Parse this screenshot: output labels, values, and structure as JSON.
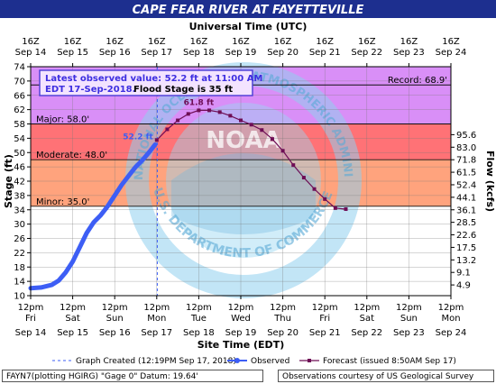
{
  "chart_data": {
    "type": "line",
    "title": "CAPE FEAR RIVER AT FAYETTEVILLE",
    "top_axis_label": "Universal Time (UTC)",
    "xlabel": "Site Time (EDT)",
    "ylabel": "Stage (ft)",
    "ylabel_right": "Flow (kcfs)",
    "ylim": [
      10,
      74
    ],
    "yticks": [
      10,
      14,
      18,
      22,
      26,
      30,
      34,
      38,
      42,
      46,
      50,
      54,
      58,
      62,
      66,
      70,
      74
    ],
    "right_ticks": [
      {
        "stage": 13.0,
        "label": "4.9"
      },
      {
        "stage": 16.5,
        "label": "9.1"
      },
      {
        "stage": 20.0,
        "label": "13.2"
      },
      {
        "stage": 23.5,
        "label": "17.5"
      },
      {
        "stage": 27.0,
        "label": "22.6"
      },
      {
        "stage": 30.5,
        "label": "28.5"
      },
      {
        "stage": 34.0,
        "label": "36.1"
      },
      {
        "stage": 37.5,
        "label": "44.1"
      },
      {
        "stage": 41.0,
        "label": "52.4"
      },
      {
        "stage": 44.5,
        "label": "61.5"
      },
      {
        "stage": 48.0,
        "label": "71.8"
      },
      {
        "stage": 51.5,
        "label": "83.0"
      },
      {
        "stage": 55.0,
        "label": "95.6"
      }
    ],
    "x_range_hours_edt": [
      "2018-09-14 12:00",
      "2018-09-24 12:00"
    ],
    "bottom_ticks": [
      {
        "top": "12pm",
        "bottom": "Fri",
        "date": "Sep 14"
      },
      {
        "top": "12pm",
        "bottom": "Sat",
        "date": "Sep 15"
      },
      {
        "top": "12pm",
        "bottom": "Sun",
        "date": "Sep 16"
      },
      {
        "top": "12pm",
        "bottom": "Mon",
        "date": "Sep 17"
      },
      {
        "top": "12pm",
        "bottom": "Tue",
        "date": "Sep 18"
      },
      {
        "top": "12pm",
        "bottom": "Wed",
        "date": "Sep 19"
      },
      {
        "top": "12pm",
        "bottom": "Thu",
        "date": "Sep 20"
      },
      {
        "top": "12pm",
        "bottom": "Fri",
        "date": "Sep 21"
      },
      {
        "top": "12pm",
        "bottom": "Sat",
        "date": "Sep 22"
      },
      {
        "top": "12pm",
        "bottom": "Sun",
        "date": "Sep 23"
      },
      {
        "top": "12pm",
        "bottom": "Mon",
        "date": "Sep 24"
      }
    ],
    "top_ticks": [
      {
        "hour": "16Z",
        "date": "Sep 14"
      },
      {
        "hour": "16Z",
        "date": "Sep 15"
      },
      {
        "hour": "16Z",
        "date": "Sep 16"
      },
      {
        "hour": "16Z",
        "date": "Sep 17"
      },
      {
        "hour": "16Z",
        "date": "Sep 18"
      },
      {
        "hour": "16Z",
        "date": "Sep 19"
      },
      {
        "hour": "16Z",
        "date": "Sep 20"
      },
      {
        "hour": "16Z",
        "date": "Sep 21"
      },
      {
        "hour": "16Z",
        "date": "Sep 22"
      },
      {
        "hour": "16Z",
        "date": "Sep 23"
      },
      {
        "hour": "16Z",
        "date": "Sep 24"
      }
    ],
    "flood_categories": [
      {
        "name": "Record",
        "label": "Record: 68.9'",
        "stage": 68.9
      },
      {
        "name": "Major",
        "label": "Major: 58.0'",
        "stage": 58.0,
        "color": "#ff7276"
      },
      {
        "name": "Moderate",
        "label": "Moderate: 48.0'",
        "stage": 48.0,
        "color": "#ffa37d"
      },
      {
        "name": "Minor",
        "label": "Minor: 35.0'",
        "stage": 35.0,
        "color": "#ffd25f"
      },
      {
        "name": "Above record",
        "color": "#d98ff7"
      }
    ],
    "series": [
      {
        "name": "Observed",
        "color": "#3d5ef5",
        "points": [
          [
            "2018-09-14 12:00",
            12.1
          ],
          [
            "2018-09-14 18:00",
            12.3
          ],
          [
            "2018-09-15 00:00",
            13.0
          ],
          [
            "2018-09-15 04:00",
            14.2
          ],
          [
            "2018-09-15 08:00",
            16.5
          ],
          [
            "2018-09-15 12:00",
            19.5
          ],
          [
            "2018-09-15 16:00",
            23.5
          ],
          [
            "2018-09-15 20:00",
            27.5
          ],
          [
            "2018-09-16 00:00",
            30.5
          ],
          [
            "2018-09-16 04:00",
            32.5
          ],
          [
            "2018-09-16 08:00",
            35.0
          ],
          [
            "2018-09-16 12:00",
            38.0
          ],
          [
            "2018-09-16 16:00",
            41.0
          ],
          [
            "2018-09-16 20:00",
            43.5
          ],
          [
            "2018-09-17 00:00",
            46.0
          ],
          [
            "2018-09-17 04:00",
            48.0
          ],
          [
            "2018-09-17 08:00",
            50.3
          ],
          [
            "2018-09-17 11:00",
            52.2
          ]
        ]
      },
      {
        "name": "Forecast (issued 8:50AM Sep 17)",
        "color": "#6e0d55",
        "points": [
          [
            "2018-09-17 12:00",
            53.5
          ],
          [
            "2018-09-17 18:00",
            56.5
          ],
          [
            "2018-09-18 00:00",
            59.0
          ],
          [
            "2018-09-18 06:00",
            60.8
          ],
          [
            "2018-09-18 12:00",
            61.8
          ],
          [
            "2018-09-18 18:00",
            61.8
          ],
          [
            "2018-09-19 00:00",
            61.3
          ],
          [
            "2018-09-19 06:00",
            60.3
          ],
          [
            "2018-09-19 12:00",
            59.0
          ],
          [
            "2018-09-19 18:00",
            57.8
          ],
          [
            "2018-09-20 00:00",
            56.3
          ],
          [
            "2018-09-20 06:00",
            53.8
          ],
          [
            "2018-09-20 12:00",
            50.5
          ],
          [
            "2018-09-20 18:00",
            46.5
          ],
          [
            "2018-09-21 00:00",
            43.0
          ],
          [
            "2018-09-21 06:00",
            39.8
          ],
          [
            "2018-09-21 12:00",
            37.0
          ],
          [
            "2018-09-21 18:00",
            34.5
          ],
          [
            "2018-09-22 00:00",
            34.2
          ]
        ]
      }
    ],
    "annotations": {
      "observed_peak_label": "52.2 ft",
      "forecast_peak_label": "61.8 ft",
      "forecast_peak_point": [
        "2018-09-18 12:00",
        61.8
      ],
      "graph_created_time": "2018-09-17 12:19"
    },
    "info_box": {
      "line1": "Latest observed value: 52.2 ft at 11:00 AM",
      "line2a": "EDT 17-Sep-2018.",
      "line2b": "Flood Stage is 35 ft"
    },
    "legend": {
      "placement": "bottom",
      "graph_created": "Graph Created (12:19PM Sep 17, 2018)",
      "observed": "Observed",
      "forecast": "Forecast (issued 8:50AM Sep 17)"
    },
    "watermark_text": "NATIONAL OCEANIC AND ATMOSPHERIC ADMINISTRATION · U.S. DEPARTMENT OF COMMERCE · NOAA",
    "grid": true
  },
  "footer": {
    "left": "FAYN7(plotting HGIRG) \"Gage 0\" Datum: 19.64'",
    "right": "Observations courtesy of US Geological Survey"
  },
  "colors": {
    "title_bar": "#1d2f8f",
    "title_text": "#ffffff",
    "below_minor": "#ffffff"
  }
}
